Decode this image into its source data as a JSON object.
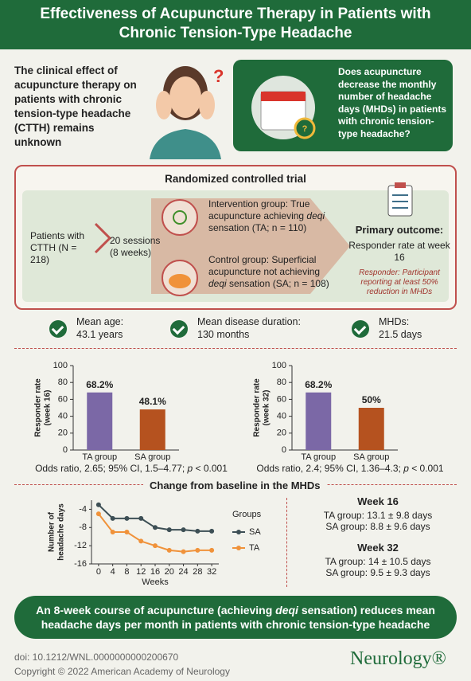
{
  "header": {
    "title": "Effectiveness of Acupuncture Therapy in Patients with Chronic Tension-Type Headache"
  },
  "intro": {
    "statement": "The clinical effect of acupuncture therapy on patients with chronic tension-type headache (CTTH) remains unknown",
    "question": "Does acupuncture decrease the monthly number of headache days (MHDs) in patients with chronic tension-type headache?"
  },
  "trial": {
    "title": "Randomized controlled trial",
    "patients": "Patients with CTTH (N = 218)",
    "sessions": "20 sessions (8 weeks)",
    "intervention": [
      "Intervention group: True acupuncture achieving ",
      "deqi",
      " sensation (TA; n = 110)"
    ],
    "control": [
      "Control group: Superficial acupuncture not achieving ",
      "deqi",
      " sensation (SA; n = 108)"
    ],
    "outcome_title": "Primary outcome:",
    "outcome": "Responder rate at week 16",
    "responder_note": "Responder: Participant reporting at least 50% reduction in MHDs"
  },
  "baseline": [
    {
      "label": "Mean age:",
      "value": "43.1 years"
    },
    {
      "label": "Mean disease duration:",
      "value": "130 months"
    },
    {
      "label": "MHDs:",
      "value": "21.5 days"
    }
  ],
  "chart_data": [
    {
      "type": "bar",
      "ylabel": [
        "Responder rate",
        "(week 16)"
      ],
      "categories": [
        "TA group",
        "SA group"
      ],
      "values": [
        68.2,
        48.1
      ],
      "value_labels": [
        "68.2%",
        "48.1%"
      ],
      "colors": [
        "#7b68a6",
        "#b5521f"
      ],
      "ylim": [
        0,
        100
      ],
      "yticks": [
        0,
        20,
        40,
        60,
        80,
        100
      ],
      "note": [
        "Odds ratio, 2.65; 95% CI, 1.5–4.77; ",
        "p",
        " < 0.001"
      ]
    },
    {
      "type": "bar",
      "ylabel": [
        "Responder rate",
        "(week 32)"
      ],
      "categories": [
        "TA group",
        "SA group"
      ],
      "values": [
        68.2,
        50
      ],
      "value_labels": [
        "68.2%",
        "50%"
      ],
      "colors": [
        "#7b68a6",
        "#b5521f"
      ],
      "ylim": [
        0,
        100
      ],
      "yticks": [
        0,
        20,
        40,
        60,
        80,
        100
      ],
      "note": [
        "Odds ratio, 2.4; 95% CI, 1.36–4.3; ",
        "p",
        " < 0.001"
      ]
    },
    {
      "type": "line",
      "title": "Change from baseline in the MHDs",
      "ylabel": [
        "Number of",
        "headache days"
      ],
      "xlabel": "Weeks",
      "legend_title": "Groups",
      "x": [
        0,
        4,
        8,
        12,
        16,
        20,
        24,
        28,
        32
      ],
      "xlim": [
        -2,
        34
      ],
      "xticks": [
        0,
        4,
        8,
        12,
        16,
        20,
        24,
        28,
        32
      ],
      "ylim": [
        -16,
        -2
      ],
      "yticks": [
        -4,
        -8,
        -12,
        -16
      ],
      "series": [
        {
          "name": "SA",
          "color": "#3d4f55",
          "values": [
            -3,
            -6,
            -6,
            -6,
            -8,
            -8.5,
            -8.5,
            -8.8,
            -8.8
          ]
        },
        {
          "name": "TA",
          "color": "#f0923a",
          "values": [
            -5,
            -9,
            -9,
            -11,
            -12,
            -13,
            -13.3,
            -13,
            -13
          ]
        }
      ]
    }
  ],
  "results": [
    {
      "title": "Week 16",
      "rows": [
        "TA group: 13.1 ± 9.8 days",
        "SA group: 8.8 ± 9.6 days"
      ]
    },
    {
      "title": "Week 32",
      "rows": [
        "TA group: 14 ± 10.5 days",
        "SA group: 9.5 ± 9.3 days"
      ]
    }
  ],
  "conclusion": [
    "An 8-week course of acupuncture (achieving ",
    "deqi",
    " sensation) reduces mean headache days per month in patients with chronic tension-type headache"
  ],
  "footer": {
    "doi": "doi: 10.1212/WNL.0000000000200670",
    "copyright": "Copyright © 2022 American Academy of Neurology",
    "logo": "Neurology®"
  }
}
